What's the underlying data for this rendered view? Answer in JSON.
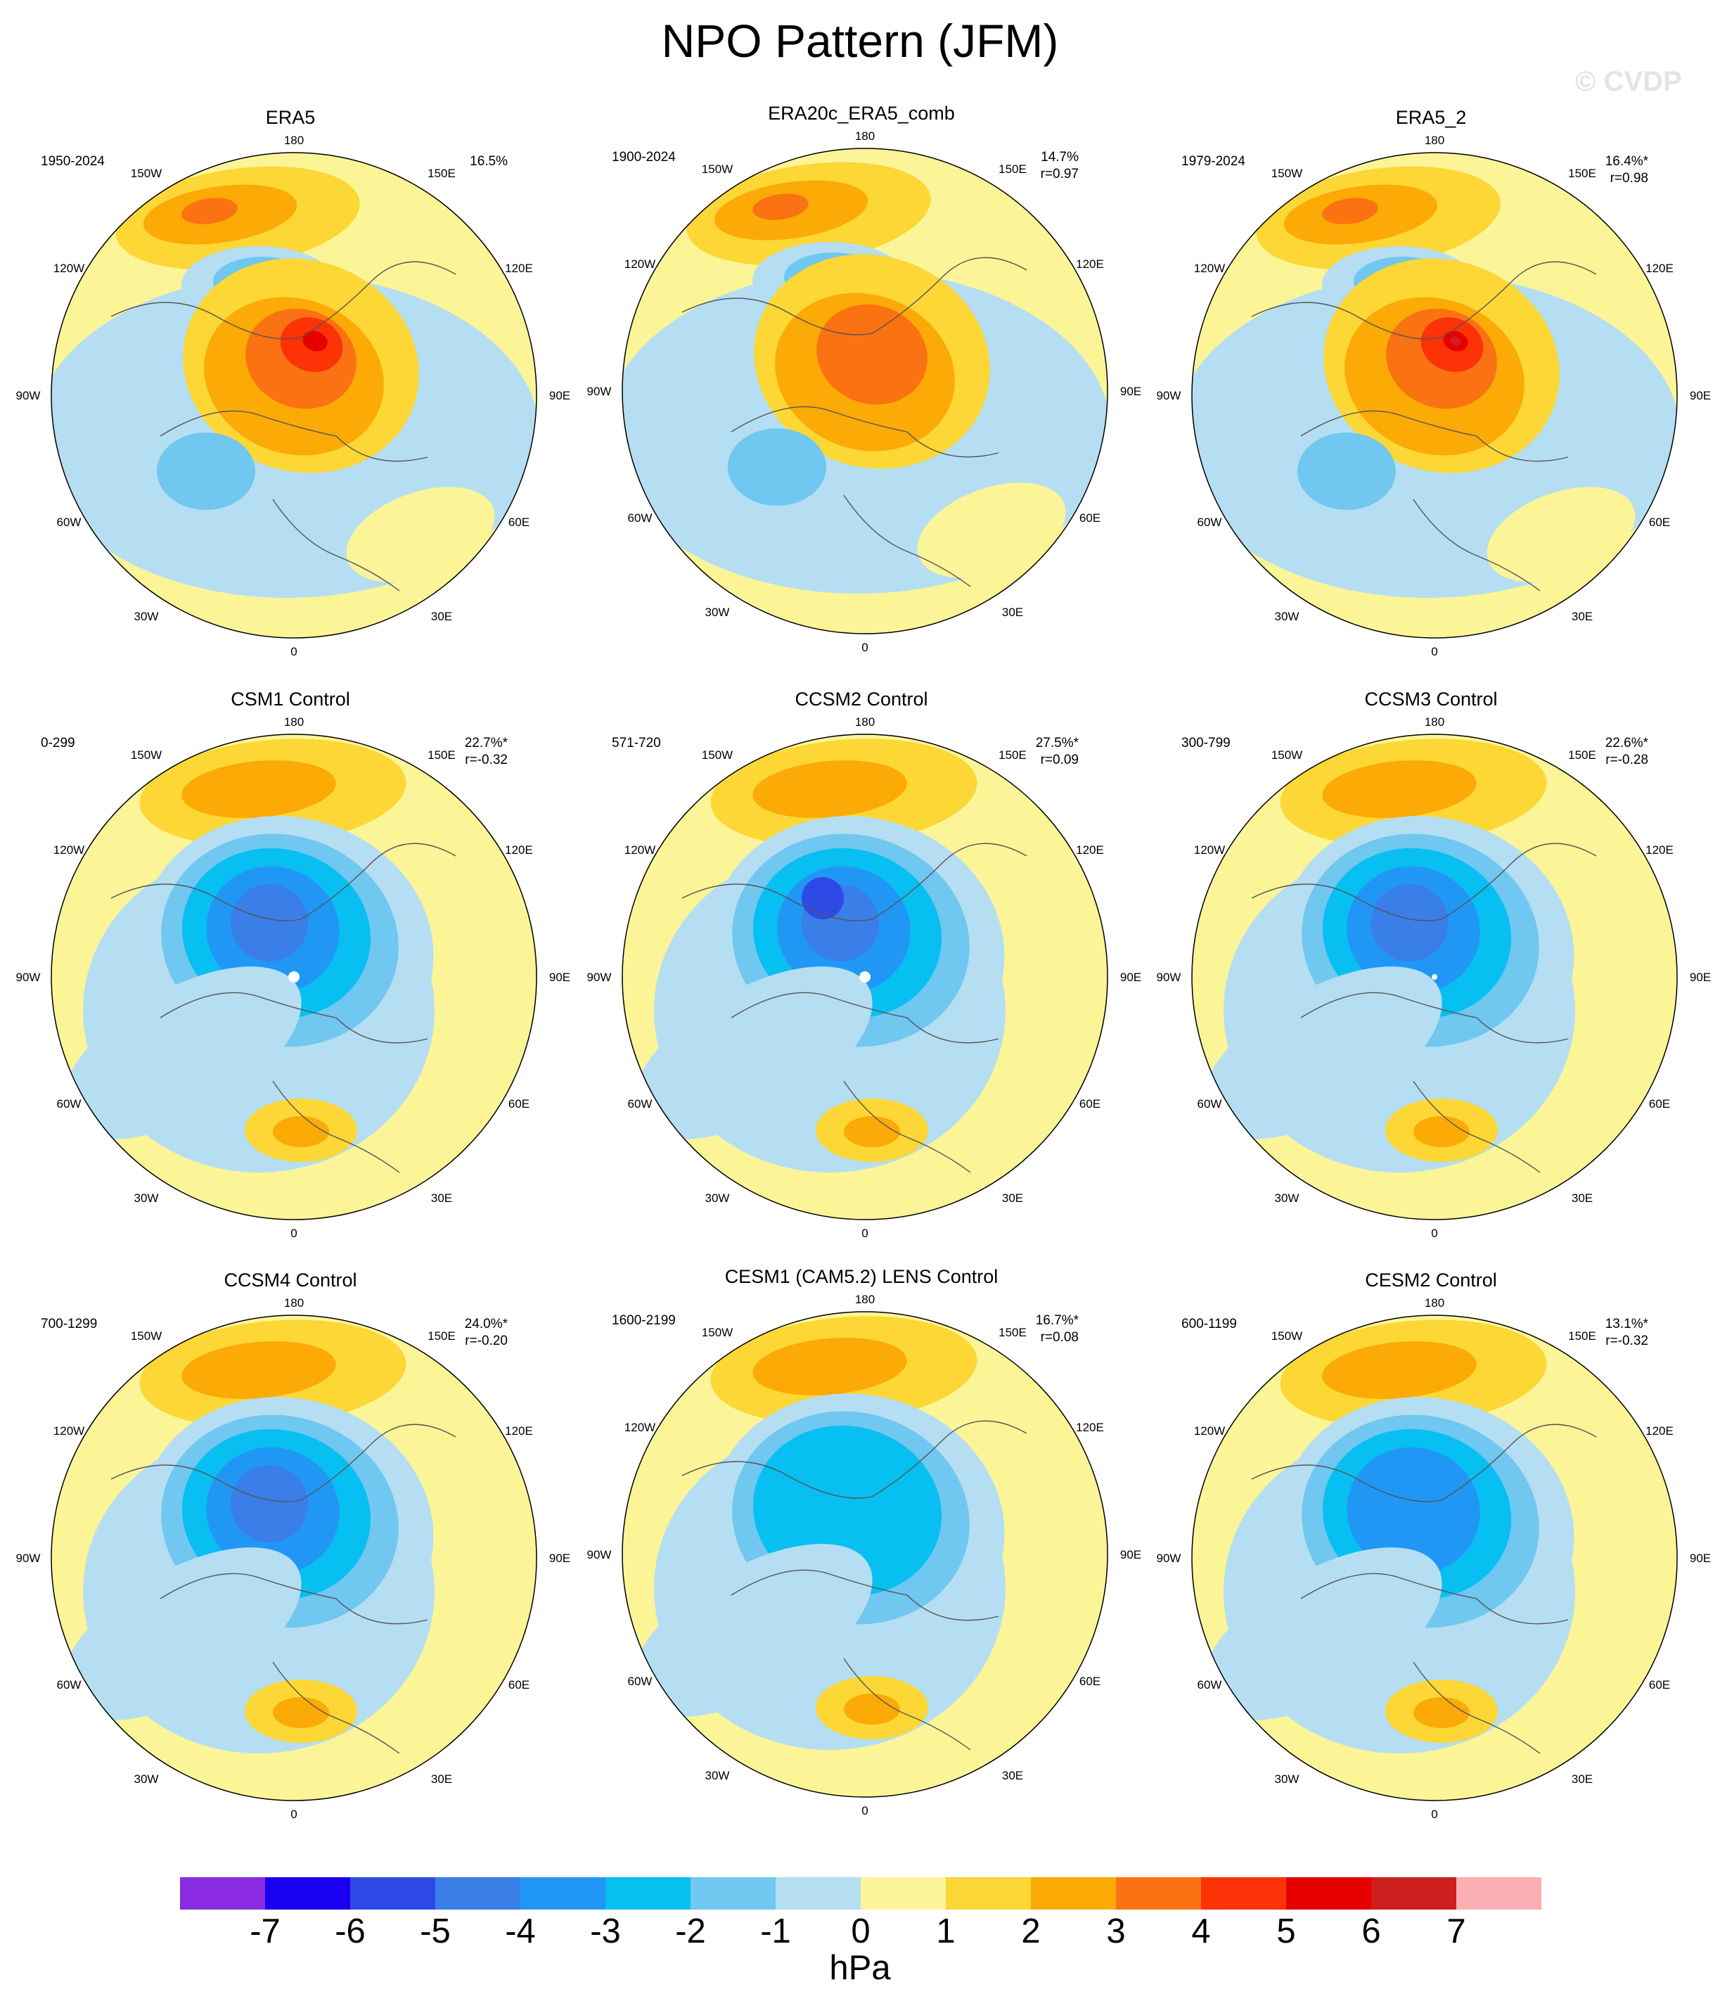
{
  "title": "NPO Pattern (JFM)",
  "watermark": "© CVDP",
  "longitude_labels": [
    "180",
    "150E",
    "120E",
    "90E",
    "60E",
    "30E",
    "0",
    "30W",
    "60W",
    "90W",
    "120W",
    "150W"
  ],
  "panels": [
    {
      "name": "ERA5",
      "years": "1950-2024",
      "pct": "16.5%",
      "r": "",
      "pattern": "obs",
      "intensity": 5
    },
    {
      "name": "ERA20c_ERA5_comb",
      "years": "1900-2024",
      "pct": "14.7%",
      "r": "r=0.97",
      "pattern": "obs",
      "intensity": 3
    },
    {
      "name": "ERA5_2",
      "years": "1979-2024",
      "pct": "16.4%*",
      "r": "r=0.98",
      "pattern": "obs",
      "intensity": 6
    },
    {
      "name": "CSM1 Control",
      "years": "0-299",
      "pct": "22.7%*",
      "r": "r=-0.32",
      "pattern": "model",
      "intensity": 5
    },
    {
      "name": "CCSM2 Control",
      "years": "571-720",
      "pct": "27.5%*",
      "r": "r=0.09",
      "pattern": "model",
      "intensity": 6
    },
    {
      "name": "CCSM3 Control",
      "years": "300-799",
      "pct": "22.6%*",
      "r": "r=-0.28",
      "pattern": "model",
      "intensity": 5
    },
    {
      "name": "CCSM4 Control",
      "years": "700-1299",
      "pct": "24.0%*",
      "r": "r=-0.20",
      "pattern": "model",
      "intensity": 5
    },
    {
      "name": "CESM1 (CAM5.2) LENS Control",
      "years": "1600-2199",
      "pct": "16.7%*",
      "r": "r=0.08",
      "pattern": "model",
      "intensity": 3
    },
    {
      "name": "CESM2 Control",
      "years": "600-1199",
      "pct": "13.1%*",
      "r": "r=-0.32",
      "pattern": "model",
      "intensity": 4
    }
  ],
  "colorbar": {
    "colors": [
      "#8a2be2",
      "#1a00f0",
      "#2f49e6",
      "#3a7ee8",
      "#2197f5",
      "#08bff2",
      "#70c7f0",
      "#b5def2",
      "#fbf598",
      "#fcd735",
      "#fcaa06",
      "#fb7212",
      "#fd3206",
      "#e60000",
      "#ce1f1f",
      "#fcafb2"
    ],
    "ticks": [
      "-7",
      "-6",
      "-5",
      "-4",
      "-3",
      "-2",
      "-1",
      "0",
      "1",
      "2",
      "3",
      "4",
      "5",
      "6",
      "7"
    ],
    "unit": "hPa"
  }
}
